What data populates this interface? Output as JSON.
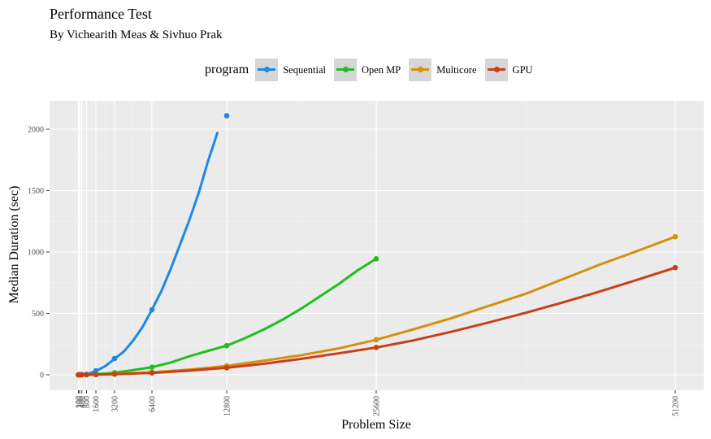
{
  "chart_data": {
    "type": "line",
    "title": "Performance Test",
    "subtitle": "By Vichearith Meas & Sivhuo Prak",
    "xlabel": "Problem Size",
    "ylabel": "Median Duration (sec)",
    "legend_title": "program",
    "legend_position": "top",
    "grid": true,
    "xlim": [
      0,
      52000
    ],
    "ylim": [
      -100,
      2200
    ],
    "x_ticks": [
      100,
      200,
      400,
      800,
      1600,
      3200,
      6400,
      12800,
      25600,
      51200
    ],
    "x_tick_labels": [
      "100",
      "200",
      "400",
      "800",
      "1600",
      "3200",
      "6400",
      "12800",
      "25600",
      "51200"
    ],
    "y_ticks": [
      0,
      500,
      1000,
      1500,
      2000
    ],
    "y_tick_labels": [
      "0",
      "500",
      "1000",
      "1500",
      "2000"
    ],
    "series": [
      {
        "name": "Sequential",
        "color": "#1e88e5",
        "x": [
          100,
          200,
          400,
          800,
          1600,
          3200,
          6400,
          12800
        ],
        "y": [
          0.1,
          0.3,
          1,
          4,
          33,
          132,
          530,
          2110
        ],
        "curve_x": [
          100,
          400,
          800,
          1600,
          2400,
          3200,
          4000,
          4800,
          5600,
          6400,
          7200,
          8000,
          8800,
          9600,
          10400,
          11200,
          12000
        ],
        "curve_y": [
          0,
          1,
          4,
          30,
          70,
          130,
          190,
          280,
          390,
          530,
          680,
          860,
          1060,
          1260,
          1480,
          1740,
          1970
        ]
      },
      {
        "name": "Open MP",
        "color": "#1fbf1f",
        "x": [
          100,
          200,
          400,
          800,
          1600,
          3200,
          6400,
          12800,
          25600
        ],
        "y": [
          0.05,
          0.1,
          0.3,
          1,
          4,
          17,
          62,
          237,
          945
        ],
        "curve_x": [
          100,
          800,
          1600,
          3200,
          4800,
          6400,
          8000,
          9600,
          11200,
          12800,
          14400,
          16000,
          17600,
          19200,
          20800,
          22400,
          24000,
          25600
        ],
        "curve_y": [
          0,
          1,
          4,
          17,
          38,
          62,
          100,
          150,
          195,
          237,
          300,
          370,
          450,
          540,
          640,
          740,
          850,
          945
        ]
      },
      {
        "name": "Multicore",
        "color": "#d4900e",
        "x": [
          100,
          200,
          400,
          800,
          1600,
          3200,
          6400,
          12800,
          25600,
          51200
        ],
        "y": [
          0.02,
          0.05,
          0.2,
          0.8,
          2,
          7,
          20,
          72,
          285,
          1125
        ],
        "curve_x": [
          100,
          1600,
          3200,
          6400,
          9600,
          12800,
          16000,
          19200,
          22400,
          25600,
          28800,
          32000,
          35200,
          38400,
          41600,
          44800,
          48000,
          51200
        ],
        "curve_y": [
          0,
          2,
          7,
          20,
          42,
          72,
          115,
          160,
          215,
          285,
          370,
          460,
          560,
          660,
          780,
          900,
          1010,
          1125
        ]
      },
      {
        "name": "GPU",
        "color": "#c8401a",
        "x": [
          100,
          200,
          400,
          800,
          1600,
          3200,
          6400,
          12800,
          25600,
          51200
        ],
        "y": [
          0.02,
          0.05,
          0.2,
          0.5,
          1.5,
          5,
          15,
          57,
          222,
          873
        ],
        "curve_x": [
          100,
          1600,
          3200,
          6400,
          9600,
          12800,
          16000,
          19200,
          22400,
          25600,
          28800,
          32000,
          35200,
          38400,
          41600,
          44800,
          48000,
          51200
        ],
        "curve_y": [
          0,
          1.5,
          5,
          15,
          34,
          57,
          90,
          130,
          175,
          222,
          280,
          350,
          425,
          505,
          590,
          680,
          775,
          873
        ]
      }
    ]
  }
}
